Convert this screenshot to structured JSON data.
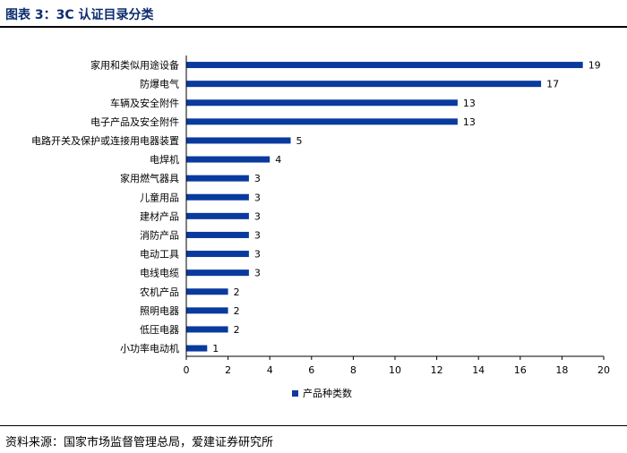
{
  "figure": {
    "title": "图表 3：3C 认证目录分类",
    "source": "资料来源：国家市场监督管理总局，爱建证券研究所"
  },
  "colors": {
    "bar": "#0a3a9e",
    "title": "#0b2c6e",
    "axis": "#000000"
  },
  "chart_data": {
    "type": "bar",
    "orientation": "horizontal",
    "categories": [
      "家用和类似用途设备",
      "防爆电气",
      "车辆及安全附件",
      "电子产品及安全附件",
      "电路开关及保护或连接用电器装置",
      "电焊机",
      "家用燃气器具",
      "儿童用品",
      "建材产品",
      "消防产品",
      "电动工具",
      "电线电缆",
      "农机产品",
      "照明电器",
      "低压电器",
      "小功率电动机"
    ],
    "series": [
      {
        "name": "产品种类数",
        "values": [
          19,
          17,
          13,
          13,
          5,
          4,
          3,
          3,
          3,
          3,
          3,
          3,
          2,
          2,
          2,
          1
        ]
      }
    ],
    "xlim": [
      0,
      20
    ],
    "xticks": [
      0,
      2,
      4,
      6,
      8,
      10,
      12,
      14,
      16,
      18,
      20
    ],
    "xlabel": "",
    "ylabel": "",
    "legend_position": "bottom",
    "data_labels": true
  }
}
